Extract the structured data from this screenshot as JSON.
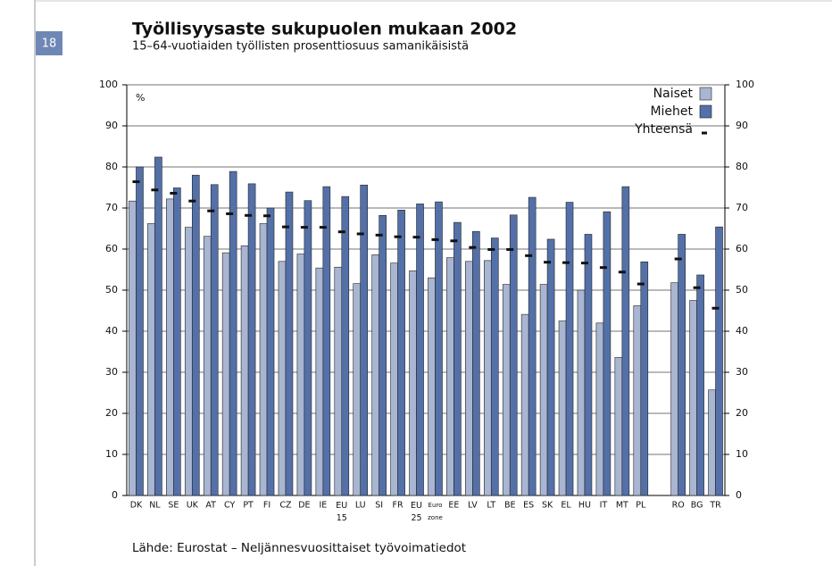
{
  "page_number": "18",
  "source": "Lähde: Eurostat – Neljännesvuosittaiset työvoimatiedot",
  "chart_data": {
    "type": "bar",
    "title": "Työllisyysaste sukupuolen mukaan 2002",
    "subtitle": "15–64-vuotiaiden työllisten prosenttiosuus samanikäisistä",
    "y_label": "%",
    "categories": [
      "DK",
      "NL",
      "SE",
      "UK",
      "AT",
      "CY",
      "PT",
      "FI",
      "CZ",
      "DE",
      "IE",
      "EU 15",
      "LU",
      "SI",
      "FR",
      "EU 25",
      "Euro zone",
      "EE",
      "LV",
      "LT",
      "BE",
      "ES",
      "SK",
      "EL",
      "HU",
      "IT",
      "MT",
      "PL",
      null,
      "RO",
      "BG",
      "TR"
    ],
    "series": [
      {
        "name": "Naiset",
        "color": "#a9b6d2",
        "style": "bar",
        "values": [
          71.7,
          66.2,
          72.2,
          65.3,
          63.1,
          59.1,
          60.8,
          66.2,
          57.0,
          58.8,
          55.4,
          55.6,
          51.6,
          58.6,
          56.6,
          54.7,
          53.0,
          57.9,
          57.0,
          57.2,
          51.4,
          44.1,
          51.4,
          42.5,
          50.0,
          42.0,
          33.6,
          46.2,
          null,
          51.8,
          47.5,
          25.7
        ]
      },
      {
        "name": "Miehet",
        "color": "#5470a8",
        "style": "bar",
        "values": [
          80.0,
          82.4,
          74.9,
          78.0,
          75.7,
          78.9,
          75.9,
          70.0,
          73.9,
          71.8,
          75.2,
          72.8,
          75.6,
          68.2,
          69.5,
          71.0,
          71.5,
          66.5,
          64.3,
          62.7,
          68.3,
          72.6,
          62.4,
          71.4,
          63.6,
          69.1,
          75.2,
          56.9,
          null,
          63.6,
          53.7,
          65.4
        ]
      },
      {
        "name": "Yhteensä",
        "color": "#111111",
        "style": "dash",
        "values": [
          76.4,
          74.4,
          73.6,
          71.7,
          69.3,
          68.6,
          68.2,
          68.1,
          65.4,
          65.3,
          65.3,
          64.2,
          63.7,
          63.4,
          63.0,
          62.9,
          62.3,
          62.0,
          60.4,
          59.9,
          59.9,
          58.4,
          56.8,
          56.7,
          56.6,
          55.5,
          54.4,
          51.5,
          null,
          57.6,
          50.6,
          45.6
        ]
      }
    ],
    "ylim": [
      0,
      100
    ],
    "yticks": [
      0,
      10,
      20,
      30,
      40,
      50,
      60,
      70,
      80,
      90,
      100
    ],
    "grid": true,
    "legend": "top-right"
  }
}
